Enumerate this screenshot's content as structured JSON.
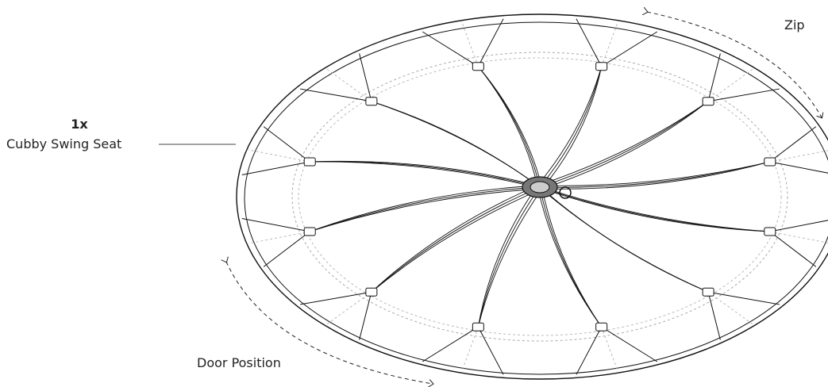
{
  "label": {
    "quantity": "1x",
    "name": "Cubby Swing Seat"
  },
  "annotations": {
    "zip": "Zip",
    "door": "Door Position"
  }
}
